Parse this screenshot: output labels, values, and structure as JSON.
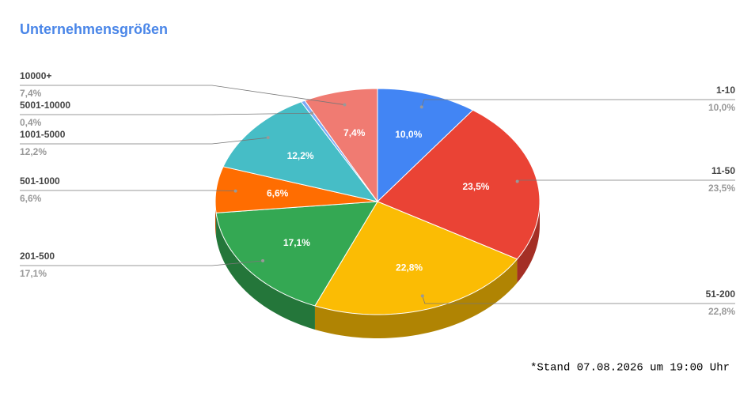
{
  "chart_data": {
    "type": "pie3d",
    "title": "Unternehmensgrößen",
    "categories": [
      "1-10",
      "11-50",
      "51-200",
      "201-500",
      "501-1000",
      "1001-5000",
      "5001-10000",
      "10000+"
    ],
    "values": [
      10.0,
      23.5,
      22.8,
      17.1,
      6.6,
      12.2,
      0.4,
      7.4
    ],
    "value_labels": [
      "10,0%",
      "23,5%",
      "22,8%",
      "17,1%",
      "6,6%",
      "12,2%",
      "0,4%",
      "7,4%"
    ],
    "colors": [
      "#4285f4",
      "#ea4335",
      "#fbbc04",
      "#34a853",
      "#ff6d01",
      "#46bdc6",
      "#7baaf7",
      "#f07b72"
    ],
    "footnote": "*Stand 07.08.2026 um 19:00 Uhr"
  }
}
